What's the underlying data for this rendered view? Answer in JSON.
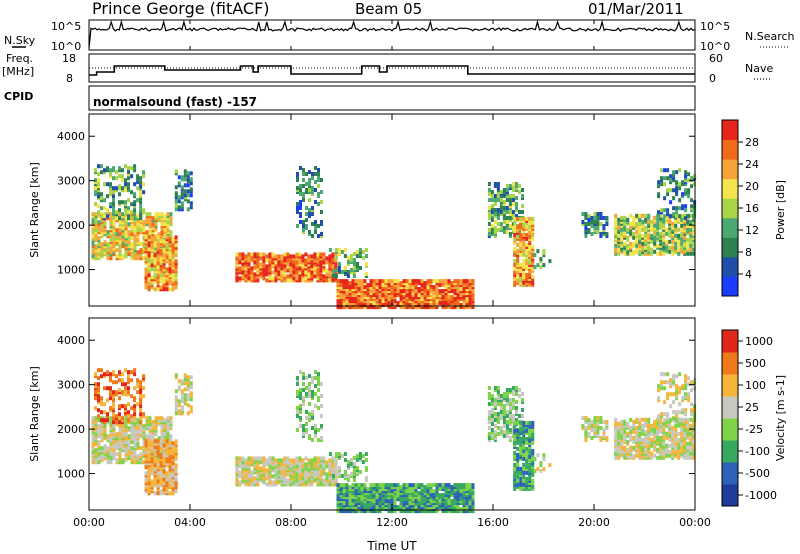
{
  "header": {
    "station": "Prince George (fitACF)",
    "beam": "Beam 05",
    "date": "01/Mar/2011"
  },
  "top_panels": {
    "nsky_label": "N.Sky",
    "nsearch_label": "N.Search",
    "left_ticks_top": "10^5",
    "left_ticks_bottom": "10^0",
    "right_ticks_top": "10^5",
    "right_ticks_bottom": "10^0",
    "freq_label_1": "Freq.",
    "freq_label_2": "[MHz]",
    "freq_tick_top": "18",
    "freq_tick_bottom": "8",
    "nave_tick_top": "60",
    "nave_tick_bottom": "0",
    "nave_label": "Nave",
    "cpid_label": "CPID",
    "cpid_text": "normalsound (fast) -157"
  },
  "chart_data": [
    {
      "type": "heatmap",
      "name": "power-panel",
      "ylabel": "Slant Range [km]",
      "xlabel": "",
      "ylim": [
        180,
        4500
      ],
      "yticks": [
        "1000",
        "2000",
        "3000",
        "4000"
      ],
      "colorbar": {
        "label": "Power [dB]",
        "ticks": [
          "4",
          "8",
          "12",
          "16",
          "20",
          "24",
          "28"
        ],
        "colors": [
          "#1a3cff",
          "#1f4faa",
          "#2d8050",
          "#4aa870",
          "#a8d44a",
          "#f5e34b",
          "#f7a33a",
          "#f06a1a",
          "#e6261d"
        ]
      }
    },
    {
      "type": "heatmap",
      "name": "velocity-panel",
      "ylabel": "Slant Range [km]",
      "xlabel": "Time UT",
      "ylim": [
        180,
        4500
      ],
      "yticks": [
        "1000",
        "2000",
        "3000",
        "4000"
      ],
      "xticks": [
        "00:00",
        "04:00",
        "08:00",
        "12:00",
        "16:00",
        "20:00",
        "00:00"
      ],
      "colorbar": {
        "label": "Velocity [m s-1]",
        "ticks": [
          "1000",
          "500",
          "100",
          "25",
          "-25",
          "-100",
          "-500",
          "-1000"
        ],
        "colors": [
          "#1f3c9a",
          "#2c63b8",
          "#36a860",
          "#7ed348",
          "#c8c8c0",
          "#f5b43a",
          "#f07a1a",
          "#e0281a"
        ]
      }
    }
  ]
}
